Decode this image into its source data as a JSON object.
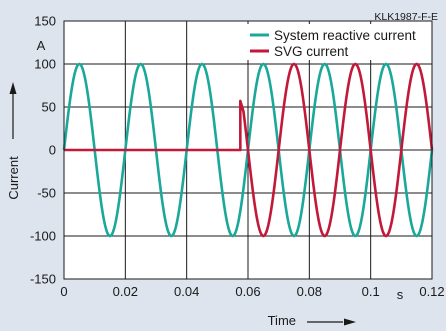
{
  "figure_code": "KLK1987-F-E",
  "colors": {
    "background": "#dde4ee",
    "plot_background": "#ffffff",
    "grid": "#1a1a1a"
  },
  "chart_data": {
    "type": "line",
    "xlabel": "Time",
    "xunit": "s",
    "ylabel": "Current",
    "yunit": "A",
    "xlim": [
      0,
      0.12
    ],
    "ylim": [
      -150,
      150
    ],
    "x_ticks": [
      0,
      0.02,
      0.04,
      0.06,
      0.08,
      0.1,
      0.12
    ],
    "x_tick_labels": [
      "0",
      "0.02",
      "0.04",
      "0.06",
      "0.08",
      "0.1",
      "0.12"
    ],
    "y_ticks": [
      -150,
      -100,
      -50,
      0,
      50,
      100,
      150
    ],
    "y_tick_labels": [
      "-150",
      "-100",
      "-50",
      "0",
      "50",
      "100",
      "150"
    ],
    "grid": true,
    "legend_position": "top-right",
    "series": [
      {
        "name": "System reactive current",
        "color": "#1aa89a",
        "description_kind": "sine",
        "amplitude": 100,
        "period": 0.02,
        "x_start": 0,
        "x_end": 0.12
      },
      {
        "name": "SVG current",
        "color": "#c2183a",
        "description_kind": "piecewise",
        "points": [
          [
            0,
            0
          ],
          [
            0.0575,
            0
          ],
          [
            0.0575,
            57
          ],
          [
            0.0585,
            45
          ]
        ],
        "then_sine": {
          "amplitude": 100,
          "period": 0.02,
          "phase_shift": 0.01,
          "x_start": 0.0585,
          "x_end": 0.12
        }
      }
    ]
  }
}
